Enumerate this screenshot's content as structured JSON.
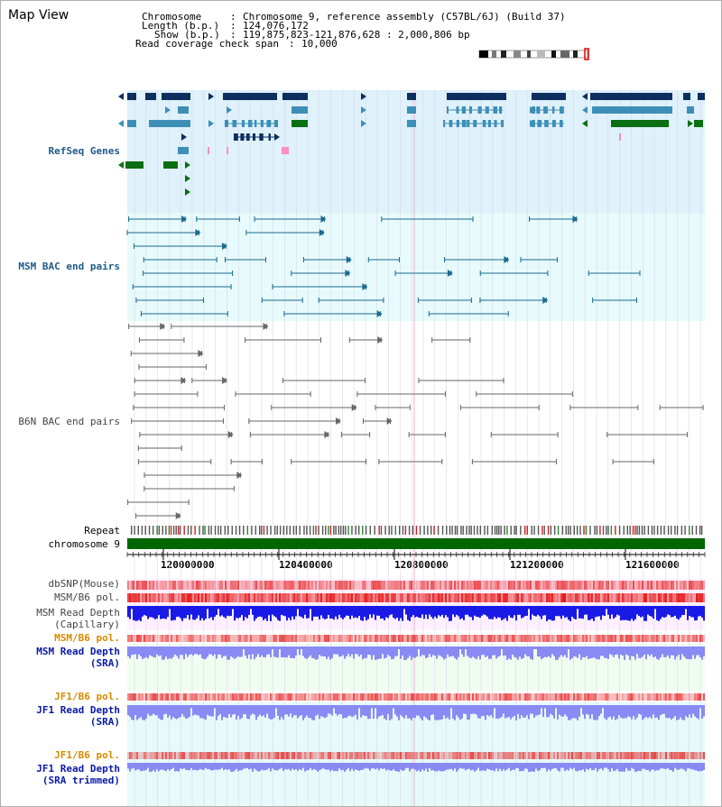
{
  "app_title": "Map View",
  "info": {
    "chromosome_key": "Chromosome",
    "chromosome_value": "Chromosome 9, reference assembly (C57BL/6J) (Build 37)",
    "length_key": "Length (b.p.)",
    "length_value": "124,076,172",
    "show_key": "Show (b.p.)",
    "show_value": "119,875,823-121,876,628 : 2,000,806 bp",
    "coverage_key": "Read coverage check span",
    "coverage_value": "10,000"
  },
  "tracks": {
    "refseq": "RefSeq Genes",
    "msm_bac": "MSM BAC end pairs",
    "b6n_bac": "B6N BAC end pairs",
    "repeat": "Repeat",
    "chromosome": "chromosome 9",
    "dbsnp": "dbSNP(Mouse)",
    "msm_b6_pol_1": "MSM/B6 pol.",
    "msm_depth_cap_1": "MSM Read Depth",
    "msm_depth_cap_2": "(Capillary)",
    "msm_b6_pol_2": "MSM/B6 pol.",
    "msm_depth_sra_1": "MSM Read Depth",
    "msm_depth_sra_2": "(SRA)",
    "jf1_b6_pol_1": "JF1/B6 pol.",
    "jf1_depth_sra_1": "JF1 Read Depth",
    "jf1_depth_sra_2": "(SRA)",
    "jf1_b6_pol_2": "JF1/B6 pol.",
    "jf1_depth_trim_1": "JF1 Read Depth",
    "jf1_depth_trim_2": "(SRA trimmed)"
  },
  "ruler": {
    "ticks": [
      "120000000",
      "120400000",
      "120800000",
      "121200000",
      "121600000"
    ]
  },
  "colors": {
    "refseq_bg": "#dff1fb",
    "msm_bg": "#e7fafc",
    "depth_bg": "#fff0ff",
    "sra_bg": "#f0fcf0",
    "jf1_bg": "#e6fafa",
    "gene_dark": "#0e2e5e",
    "gene_mid": "#3d8fb6",
    "gene_green": "#0a6e12",
    "chromosome_green": "#006600",
    "depth_blue": "#1a1ae6",
    "depth_light": "#8a8af5"
  }
}
